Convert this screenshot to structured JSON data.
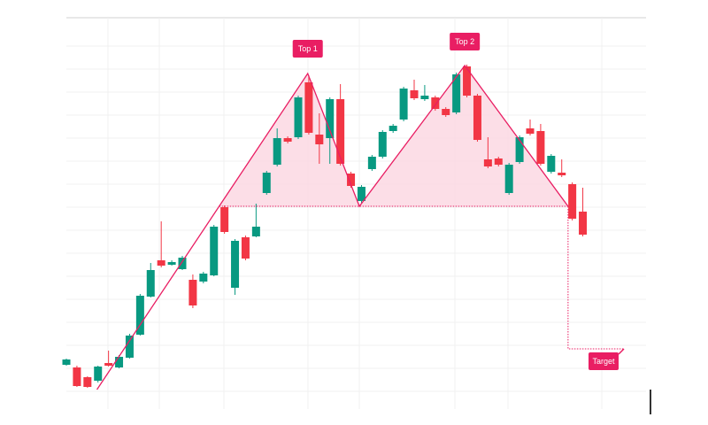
{
  "chart_data": {
    "type": "candlestick",
    "xlim": [
      0,
      55
    ],
    "ylim": [
      18,
      460
    ],
    "up_color": "#089981",
    "down_color": "#f23645",
    "x": [
      0,
      1,
      2,
      3,
      4,
      5,
      6,
      7,
      8,
      9,
      10,
      11,
      12,
      13,
      14,
      15,
      16,
      17,
      18,
      19,
      20,
      21,
      22,
      23,
      24,
      25,
      26,
      27,
      28,
      29,
      30,
      31,
      32,
      33,
      34,
      35,
      36,
      37,
      38,
      39,
      40,
      41,
      42,
      43,
      44,
      45,
      46,
      47,
      48,
      49
    ],
    "open": [
      68,
      65,
      54,
      50,
      70,
      65,
      76,
      102,
      145,
      186,
      181,
      176,
      164,
      162,
      169,
      246,
      155,
      212,
      213,
      262,
      294,
      324,
      325,
      387,
      328,
      324,
      368,
      284,
      253,
      289,
      303,
      332,
      345,
      378,
      368,
      370,
      357,
      353,
      405,
      372,
      300,
      301,
      262,
      297,
      335,
      332,
      286,
      285,
      272,
      241
    ],
    "high": [
      75,
      67,
      55,
      67,
      84,
      79,
      103,
      148,
      183,
      230,
      186,
      191,
      170,
      173,
      226,
      248,
      210,
      214,
      250,
      287,
      335,
      326,
      372,
      395,
      352,
      370,
      385,
      286,
      271,
      305,
      333,
      340,
      382,
      390,
      384,
      372,
      359,
      398,
      407,
      374,
      325,
      303,
      296,
      327,
      345,
      340,
      306,
      300,
      274,
      268
    ],
    "low": [
      67,
      43,
      42,
      48,
      66,
      64,
      75,
      101,
      144,
      178,
      180,
      175,
      132,
      160,
      168,
      216,
      147,
      186,
      212,
      260,
      292,
      318,
      323,
      328,
      295,
      295,
      293,
      268,
      251,
      287,
      301,
      330,
      343,
      367,
      366,
      355,
      348,
      351,
      370,
      320,
      290,
      292,
      260,
      295,
      327,
      293,
      284,
      280,
      231,
      213
    ],
    "close": [
      74,
      44,
      43,
      66,
      67,
      77,
      101,
      146,
      175,
      180,
      184,
      189,
      135,
      171,
      224,
      218,
      208,
      188,
      224,
      285,
      324,
      320,
      370,
      330,
      317,
      368,
      295,
      270,
      269,
      303,
      331,
      338,
      380,
      369,
      372,
      357,
      350,
      396,
      372,
      322,
      292,
      294,
      294,
      325,
      329,
      295,
      304,
      282,
      233,
      215
    ],
    "pattern": {
      "color": "#e91e63",
      "fill": "#fcd8e3",
      "points": {
        "x": [
          2.9,
          22.9,
          27.8,
          37.8,
          47.6
        ],
        "y": [
          40,
          397,
          247,
          406,
          247
        ]
      },
      "neckline": {
        "x": [
          14.5,
          47.6
        ],
        "y": 247
      },
      "target": {
        "x": [
          47.6,
          52.9
        ],
        "y": 86
      },
      "labels": [
        "Top 1",
        "Top 2",
        "Target"
      ]
    }
  }
}
